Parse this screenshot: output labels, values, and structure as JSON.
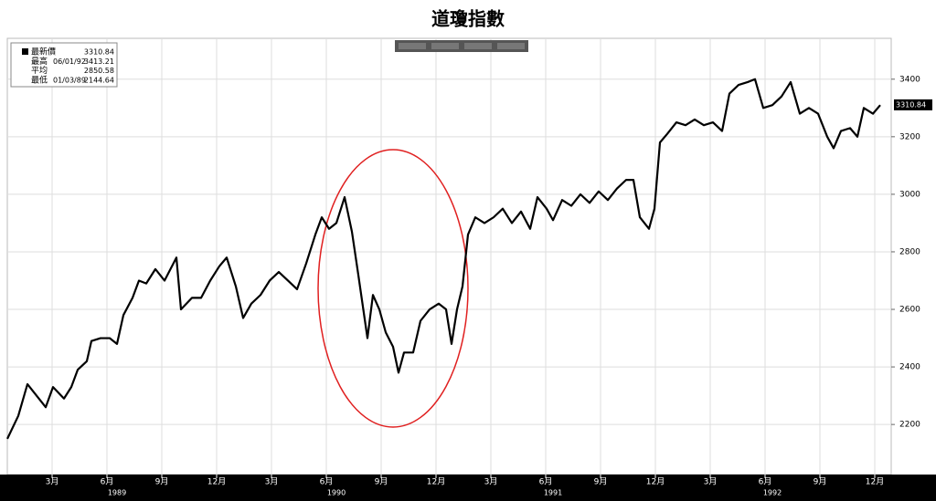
{
  "chart_data": {
    "type": "line",
    "title": "道瓊指數",
    "x": [
      -0.45,
      0.15,
      0.65,
      1.15,
      1.65,
      2.05,
      2.65,
      3.05,
      3.4,
      3.9,
      4.15,
      4.65,
      5.15,
      5.55,
      5.9,
      6.4,
      6.75,
      7.15,
      7.65,
      8.15,
      8.8,
      9.05,
      9.65,
      10.15,
      10.65,
      11.15,
      11.55,
      12.05,
      12.45,
      12.9,
      13.4,
      13.9,
      14.4,
      14.9,
      15.4,
      15.9,
      16.4,
      16.75,
      17.15,
      17.55,
      18.0,
      18.4,
      18.75,
      19.25,
      19.55,
      19.9,
      20.25,
      20.65,
      20.95,
      21.25,
      21.75,
      22.15,
      22.65,
      23.15,
      23.55,
      23.85,
      24.15,
      24.45,
      24.75,
      25.15,
      25.65,
      26.15,
      26.65,
      27.15,
      27.65,
      28.15,
      28.55,
      29.05,
      29.4,
      29.9,
      30.4,
      30.9,
      31.4,
      31.9,
      32.4,
      32.9,
      33.4,
      33.8,
      34.15,
      34.65,
      34.95,
      35.25,
      35.65,
      36.15,
      36.65,
      37.15,
      37.65,
      38.15,
      38.65,
      39.05,
      39.55,
      40.05,
      40.45,
      40.9,
      41.4,
      41.9,
      42.4,
      42.9,
      43.4,
      43.9,
      44.4,
      44.75,
      45.15,
      45.65,
      46.05,
      46.4,
      46.9,
      47.3
    ],
    "series": [
      {
        "name": "最新價",
        "color": "#000000",
        "values": [
          2150,
          2230,
          2340,
          2300,
          2260,
          2330,
          2290,
          2330,
          2390,
          2420,
          2490,
          2500,
          2500,
          2480,
          2580,
          2640,
          2700,
          2690,
          2740,
          2700,
          2780,
          2600,
          2640,
          2640,
          2700,
          2750,
          2780,
          2680,
          2570,
          2620,
          2650,
          2700,
          2730,
          2700,
          2670,
          2760,
          2860,
          2920,
          2880,
          2900,
          2990,
          2870,
          2720,
          2500,
          2650,
          2600,
          2520,
          2470,
          2380,
          2450,
          2450,
          2560,
          2600,
          2620,
          2600,
          2480,
          2600,
          2680,
          2860,
          2920,
          2900,
          2920,
          2950,
          2900,
          2940,
          2880,
          2990,
          2950,
          2910,
          2980,
          2960,
          3000,
          2970,
          3010,
          2980,
          3020,
          3050,
          3050,
          2920,
          2880,
          2950,
          3180,
          3210,
          3250,
          3240,
          3260,
          3240,
          3250,
          3220,
          3350,
          3380,
          3390,
          3400,
          3300,
          3310,
          3340,
          3390,
          3280,
          3300,
          3280,
          3200,
          3160,
          3220,
          3230,
          3200,
          3300,
          3280,
          3310
        ]
      }
    ],
    "xlim": [
      -0.45,
      47.9
    ],
    "xticks": [
      {
        "value": 2,
        "label": "3月"
      },
      {
        "value": 5,
        "label": "6月"
      },
      {
        "value": 8,
        "label": "9月"
      },
      {
        "value": 11,
        "label": "12月"
      },
      {
        "value": 14,
        "label": "3月"
      },
      {
        "value": 17,
        "label": "6月"
      },
      {
        "value": 20,
        "label": "9月"
      },
      {
        "value": 23,
        "label": "12月"
      },
      {
        "value": 26,
        "label": "3月"
      },
      {
        "value": 29,
        "label": "6月"
      },
      {
        "value": 32,
        "label": "9月"
      },
      {
        "value": 35,
        "label": "12月"
      },
      {
        "value": 38,
        "label": "3月"
      },
      {
        "value": 41,
        "label": "6月"
      },
      {
        "value": 44,
        "label": "9月"
      },
      {
        "value": 47,
        "label": "12月"
      }
    ],
    "year_ticks": [
      {
        "value": 5.55,
        "label": "1989"
      },
      {
        "value": 17.55,
        "label": "1990"
      },
      {
        "value": 29.4,
        "label": "1991"
      },
      {
        "value": 41.4,
        "label": "1992"
      }
    ],
    "ylim": [
      2026,
      3542
    ],
    "yticks": [
      2200,
      2400,
      2600,
      2800,
      3000,
      3200,
      3400
    ],
    "grid": true,
    "legend": [
      {
        "label": "最新價",
        "date": null,
        "value": 3310.84
      },
      {
        "label": "最高",
        "date": "06/01/92",
        "value": 3413.21
      },
      {
        "label": "平均",
        "date": null,
        "value": 2850.58
      },
      {
        "label": "最低",
        "date": "01/03/89",
        "value": 2144.64
      }
    ]
  }
}
